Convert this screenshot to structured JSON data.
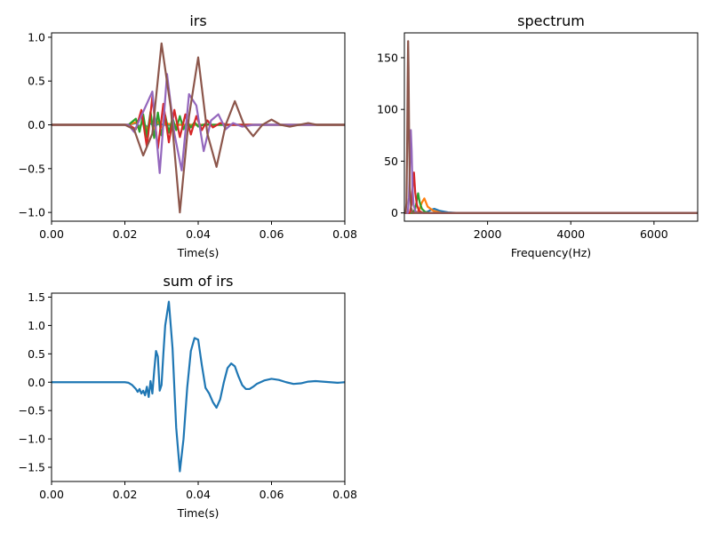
{
  "chart_data": [
    {
      "type": "line",
      "title": "irs",
      "xlabel": "Time(s)",
      "ylabel": "",
      "xlim": [
        0,
        0.08
      ],
      "ylim": [
        -1.1,
        1.05
      ],
      "xticks": [
        0,
        0.02,
        0.04,
        0.06,
        0.08
      ],
      "xtick_labels": [
        "0.00",
        "0.02",
        "0.04",
        "0.06",
        "0.08"
      ],
      "yticks": [
        -1.0,
        -0.5,
        0.0,
        0.5,
        1.0
      ],
      "ytick_labels": [
        "−1.0",
        "−0.5",
        "0.0",
        "0.5",
        "1.0"
      ],
      "grid": false,
      "series": [
        {
          "color": "#1f77b4",
          "x": [
            0,
            0.021,
            0.023,
            0.024,
            0.025,
            0.026,
            0.027,
            0.028,
            0.029,
            0.031,
            0.08
          ],
          "y": [
            0,
            0,
            0.02,
            -0.02,
            0.03,
            -0.03,
            0.02,
            -0.02,
            0.01,
            0,
            0
          ]
        },
        {
          "color": "#ff7f0e",
          "x": [
            0,
            0.021,
            0.023,
            0.024,
            0.025,
            0.026,
            0.027,
            0.028,
            0.029,
            0.03,
            0.031,
            0.033,
            0.08
          ],
          "y": [
            0,
            0,
            0.03,
            -0.04,
            0.05,
            -0.06,
            0.06,
            -0.05,
            0.04,
            -0.03,
            0.02,
            0,
            0
          ]
        },
        {
          "color": "#2ca02c",
          "x": [
            0,
            0.021,
            0.023,
            0.024,
            0.025,
            0.026,
            0.027,
            0.028,
            0.029,
            0.03,
            0.031,
            0.032,
            0.033,
            0.034,
            0.035,
            0.036,
            0.037,
            0.038,
            0.039,
            0.04,
            0.042,
            0.044,
            0.08
          ],
          "y": [
            0,
            0,
            0.07,
            -0.08,
            0.12,
            -0.14,
            0.15,
            -0.15,
            0.14,
            -0.12,
            0.11,
            -0.09,
            0.08,
            -0.06,
            0.1,
            -0.05,
            0.04,
            -0.03,
            0.03,
            -0.02,
            0.01,
            0,
            0
          ]
        },
        {
          "color": "#d62728",
          "x": [
            0,
            0.021,
            0.023,
            0.0245,
            0.026,
            0.0275,
            0.029,
            0.0305,
            0.032,
            0.0335,
            0.035,
            0.0365,
            0.038,
            0.0395,
            0.041,
            0.0425,
            0.044,
            0.046,
            0.048,
            0.08
          ],
          "y": [
            0,
            0,
            -0.05,
            0.17,
            -0.25,
            0.32,
            -0.27,
            0.24,
            -0.2,
            0.17,
            -0.14,
            0.12,
            -0.11,
            0.1,
            -0.06,
            0.05,
            -0.03,
            0.02,
            0,
            0
          ]
        },
        {
          "color": "#9467bd",
          "x": [
            0,
            0.021,
            0.0225,
            0.025,
            0.0275,
            0.0295,
            0.0315,
            0.0335,
            0.0355,
            0.0375,
            0.0395,
            0.0415,
            0.0435,
            0.0455,
            0.0475,
            0.0495,
            0.052,
            0.055,
            0.08
          ],
          "y": [
            0,
            0,
            -0.08,
            0.15,
            0.38,
            -0.55,
            0.58,
            -0.1,
            -0.52,
            0.35,
            0.22,
            -0.3,
            0.05,
            0.12,
            -0.05,
            0.02,
            -0.02,
            0,
            0
          ]
        },
        {
          "color": "#8c564b",
          "x": [
            0,
            0.02,
            0.0225,
            0.025,
            0.0275,
            0.03,
            0.0325,
            0.035,
            0.0375,
            0.04,
            0.0425,
            0.045,
            0.0475,
            0.05,
            0.0525,
            0.055,
            0.0575,
            0.06,
            0.0625,
            0.065,
            0.0675,
            0.07,
            0.0725,
            0.075,
            0.08
          ],
          "y": [
            0,
            0,
            -0.05,
            -0.35,
            -0.1,
            0.93,
            0.2,
            -1.0,
            0.1,
            0.77,
            -0.1,
            -0.48,
            0.0,
            0.27,
            0.0,
            -0.13,
            0.0,
            0.06,
            0.0,
            -0.02,
            0.0,
            0.02,
            0.0,
            0.0,
            0.0
          ]
        }
      ]
    },
    {
      "type": "line",
      "title": "spectrum",
      "xlabel": "Frequency(Hz)",
      "ylabel": "",
      "xlim": [
        0,
        7050
      ],
      "ylim": [
        -8,
        174
      ],
      "xticks": [
        2000,
        4000,
        6000
      ],
      "xtick_labels": [
        "2000",
        "4000",
        "6000"
      ],
      "yticks": [
        0,
        50,
        100,
        150
      ],
      "ytick_labels": [
        "0",
        "50",
        "100",
        "150"
      ],
      "grid": false,
      "series": [
        {
          "color": "#1f77b4",
          "x": [
            0,
            400,
            550,
            640,
            720,
            850,
            1050,
            1300,
            7050
          ],
          "y": [
            0,
            0,
            1,
            3,
            4,
            2,
            0.5,
            0,
            0
          ]
        },
        {
          "color": "#ff7f0e",
          "x": [
            0,
            250,
            350,
            420,
            480,
            560,
            700,
            900,
            7050
          ],
          "y": [
            0,
            0,
            2,
            10,
            14,
            6,
            2,
            0,
            0
          ]
        },
        {
          "color": "#2ca02c",
          "x": [
            0,
            200,
            260,
            300,
            330,
            370,
            420,
            500,
            600,
            7050
          ],
          "y": [
            0,
            0,
            4,
            12,
            19,
            10,
            4,
            1,
            0,
            0
          ]
        },
        {
          "color": "#d62728",
          "x": [
            0,
            130,
            170,
            200,
            230,
            260,
            300,
            350,
            450,
            7050
          ],
          "y": [
            0,
            0,
            8,
            25,
            39,
            20,
            8,
            2,
            0,
            0
          ]
        },
        {
          "color": "#9467bd",
          "x": [
            0,
            80,
            110,
            135,
            155,
            175,
            195,
            220,
            260,
            320,
            7050
          ],
          "y": [
            0,
            0,
            15,
            50,
            80,
            60,
            25,
            8,
            2,
            0,
            0
          ]
        },
        {
          "color": "#8c564b",
          "x": [
            0,
            30,
            50,
            65,
            80,
            90,
            100,
            115,
            130,
            160,
            200,
            7050
          ],
          "y": [
            0,
            0,
            10,
            60,
            130,
            166,
            140,
            70,
            25,
            5,
            0,
            0
          ]
        }
      ]
    },
    {
      "type": "line",
      "title": "sum of irs",
      "xlabel": "Time(s)",
      "ylabel": "",
      "xlim": [
        0,
        0.08
      ],
      "ylim": [
        -1.75,
        1.57
      ],
      "xticks": [
        0,
        0.02,
        0.04,
        0.06,
        0.08
      ],
      "xtick_labels": [
        "0.00",
        "0.02",
        "0.04",
        "0.06",
        "0.08"
      ],
      "yticks": [
        -1.5,
        -1.0,
        -0.5,
        0.0,
        0.5,
        1.0,
        1.5
      ],
      "ytick_labels": [
        "−1.5",
        "−1.0",
        "−0.5",
        "0.0",
        "0.5",
        "1.0",
        "1.5"
      ],
      "grid": false,
      "series": [
        {
          "color": "#1f77b4",
          "x": [
            0,
            0.02,
            0.021,
            0.022,
            0.023,
            0.0235,
            0.024,
            0.0245,
            0.025,
            0.0255,
            0.026,
            0.0265,
            0.027,
            0.0275,
            0.028,
            0.0285,
            0.029,
            0.0295,
            0.03,
            0.0305,
            0.031,
            0.032,
            0.033,
            0.034,
            0.035,
            0.036,
            0.037,
            0.038,
            0.039,
            0.04,
            0.041,
            0.042,
            0.043,
            0.044,
            0.045,
            0.046,
            0.047,
            0.048,
            0.049,
            0.05,
            0.051,
            0.052,
            0.053,
            0.054,
            0.055,
            0.056,
            0.058,
            0.06,
            0.062,
            0.064,
            0.066,
            0.068,
            0.07,
            0.072,
            0.074,
            0.076,
            0.078,
            0.08
          ],
          "y": [
            0,
            0,
            -0.01,
            -0.05,
            -0.12,
            -0.17,
            -0.12,
            -0.2,
            -0.15,
            -0.23,
            -0.08,
            -0.26,
            0.02,
            -0.2,
            0.2,
            0.55,
            0.45,
            -0.15,
            -0.05,
            0.5,
            1.0,
            1.42,
            0.6,
            -0.8,
            -1.57,
            -1.0,
            -0.1,
            0.55,
            0.78,
            0.75,
            0.3,
            -0.1,
            -0.2,
            -0.35,
            -0.45,
            -0.3,
            0.0,
            0.25,
            0.33,
            0.28,
            0.1,
            -0.05,
            -0.12,
            -0.12,
            -0.08,
            -0.03,
            0.03,
            0.06,
            0.04,
            0.0,
            -0.03,
            -0.02,
            0.01,
            0.02,
            0.01,
            0.0,
            -0.01,
            0.0
          ]
        }
      ]
    }
  ]
}
